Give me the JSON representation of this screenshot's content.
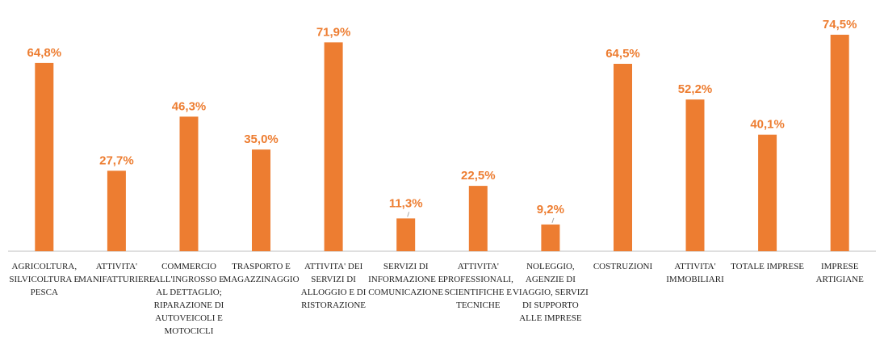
{
  "chart_data": {
    "type": "bar",
    "title": "",
    "xlabel": "",
    "ylabel": "",
    "ylim": [
      0,
      80
    ],
    "grid": false,
    "legend": "none",
    "bar_color": "#ED7D31",
    "categories": [
      "AGRICOLTURA, SILVICOLTURA E PESCA",
      "ATTIVITA' MANIFATTURIERE",
      "COMMERCIO ALL'INGROSSO E AL DETTAGLIO; RIPARAZIONE DI AUTOVEICOLI E MOTOCICLI",
      "TRASPORTO E MAGAZZINAGGIO",
      "ATTIVITA' DEI SERVIZI DI ALLOGGIO E DI RISTORAZIONE",
      "SERVIZI DI INFORMAZIONE E COMUNICAZIONE",
      "ATTIVITA' PROFESSIONALI, SCIENTIFICHE E TECNICHE",
      "NOLEGGIO, AGENZIE DI VIAGGIO, SERVIZI DI SUPPORTO ALLE IMPRESE",
      "COSTRUZIONI",
      "ATTIVITA' IMMOBILIARI",
      "TOTALE IMPRESE",
      "IMPRESE ARTIGIANE"
    ],
    "category_lines": [
      [
        "AGRICOLTURA,",
        "SILVICOLTURA E",
        "PESCA"
      ],
      [
        "ATTIVITA'",
        "MANIFATTURIERE"
      ],
      [
        "COMMERCIO",
        "ALL'INGROSSO E",
        "AL DETTAGLIO;",
        "RIPARAZIONE DI",
        "AUTOVEICOLI E",
        "MOTOCICLI"
      ],
      [
        "TRASPORTO E",
        "MAGAZZINAGGIO"
      ],
      [
        "ATTIVITA' DEI",
        "SERVIZI DI",
        "ALLOGGIO E DI",
        "RISTORAZIONE"
      ],
      [
        "SERVIZI DI",
        "INFORMAZIONE E",
        "COMUNICAZIONE"
      ],
      [
        "ATTIVITA'",
        "PROFESSIONALI,",
        "SCIENTIFICHE E",
        "TECNICHE"
      ],
      [
        "NOLEGGIO,",
        "AGENZIE DI",
        "VIAGGIO, SERVIZI",
        "DI SUPPORTO",
        "ALLE IMPRESE"
      ],
      [
        "COSTRUZIONI"
      ],
      [
        "ATTIVITA'",
        "IMMOBILIARI"
      ],
      [
        "TOTALE IMPRESE"
      ],
      [
        "IMPRESE",
        "ARTIGIANE"
      ]
    ],
    "values": [
      64.8,
      27.7,
      46.3,
      35.0,
      71.9,
      11.3,
      22.5,
      9.2,
      64.5,
      52.2,
      40.1,
      74.5
    ],
    "data_labels": [
      "64,8%",
      "27,7%",
      "46,3%",
      "35,0%",
      "71,9%",
      "11,3%",
      "22,5%",
      "9,2%",
      "64,5%",
      "52,2%",
      "40,1%",
      "74,5%"
    ]
  }
}
